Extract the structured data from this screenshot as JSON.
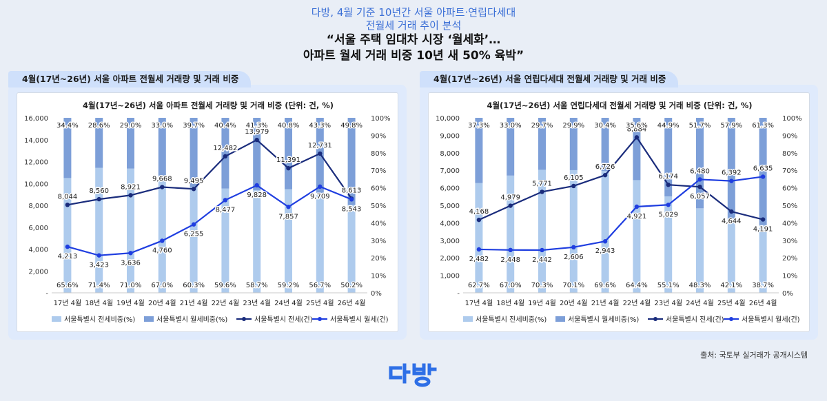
{
  "header": {
    "line1": "다방, 4월 기준 10년간 서울 아파트·연립다세대",
    "line2": "전월세 거래 추이 분석",
    "line3": "“서울 주택 임대차 시장 ‘월세화’…",
    "line4": "아파트 월세 거래 비중 10년 새 50% 육박”"
  },
  "panels": [
    {
      "tab": "4월(17년~26년) 서울 아파트 전월세 거래량 및 거래 비중"
    },
    {
      "tab": "4월(17년~26년) 서울 연립다세대 전월세 거래량 및 거래 비중"
    }
  ],
  "source": "출처: 국토부 실거래가 공개시스템",
  "logo": {
    "name": "dabang-logo",
    "color": "#2e6fe6"
  },
  "colors": {
    "jeonse_bar": "#aecbed",
    "wolse_bar": "#7d9fd8",
    "jeonse_line": "#1a2c7c",
    "wolse_line": "#1f3ee0"
  },
  "chart_data": [
    {
      "type": "bar",
      "title": "4월(17년~26년) 서울 아파트 전월세 거래량 및 거래 비중 (단위: 건, %)",
      "categories": [
        "17년 4월",
        "18년 4월",
        "19년 4월",
        "20년 4월",
        "21년 4월",
        "22년 4월",
        "23년 4월",
        "24년 4월",
        "25년 4월",
        "26년 4월"
      ],
      "y_left": {
        "min": 0,
        "max": 16000,
        "ticks": [
          "-",
          "2,000",
          "4,000",
          "6,000",
          "8,000",
          "10,000",
          "12,000",
          "14,000",
          "16,000"
        ]
      },
      "y_right": {
        "min": 0,
        "max": 100,
        "ticks": [
          "0%",
          "10%",
          "20%",
          "30%",
          "40%",
          "50%",
          "60%",
          "70%",
          "80%",
          "90%",
          "100%"
        ]
      },
      "series": [
        {
          "name": "서울특별시 전세비중(%)",
          "kind": "stacked-bar",
          "values": [
            65.6,
            71.4,
            71.0,
            67.0,
            60.3,
            59.6,
            58.7,
            59.2,
            56.7,
            50.2
          ],
          "labels": [
            "65.6%",
            "71.4%",
            "71.0%",
            "67.0%",
            "60.3%",
            "59.6%",
            "58.7%",
            "59.2%",
            "56.7%",
            "50.2%"
          ]
        },
        {
          "name": "서울특별시 월세비중(%)",
          "kind": "stacked-bar",
          "values": [
            34.4,
            28.6,
            29.0,
            33.0,
            39.7,
            40.4,
            41.3,
            40.8,
            43.3,
            49.8
          ],
          "labels": [
            "34.4%",
            "28.6%",
            "29.0%",
            "33.0%",
            "39.7%",
            "40.4%",
            "41.3%",
            "40.8%",
            "43.3%",
            "49.8%"
          ]
        },
        {
          "name": "서울특별시 전세(건)",
          "kind": "line",
          "values": [
            8044,
            8560,
            8921,
            9668,
            9495,
            12482,
            13979,
            11391,
            12731,
            8613
          ],
          "labels": [
            "8,044",
            "8,560",
            "8,921",
            "9,668",
            "9,495",
            "12,482",
            "13,979",
            "11,391",
            "12,731",
            "8,613"
          ]
        },
        {
          "name": "서울특별시 월세(건)",
          "kind": "line",
          "values": [
            4213,
            3423,
            3636,
            4760,
            6255,
            8477,
            9828,
            7857,
            9709,
            8543
          ],
          "labels": [
            "4,213",
            "3,423",
            "3,636",
            "4,760",
            "6,255",
            "8,477",
            "9,828",
            "7,857",
            "9,709",
            "8,543"
          ]
        }
      ],
      "legend": "bottom"
    },
    {
      "type": "bar",
      "title": "4월(17년~26년) 서울 연립다세대 전월세 거래량 및 거래 비중 (단위: 건, %)",
      "categories": [
        "17년 4월",
        "18년 4월",
        "19년 4월",
        "20년 4월",
        "21년 4월",
        "22년 4월",
        "23년 4월",
        "24년 4월",
        "25년 4월",
        "26년 4월"
      ],
      "y_left": {
        "min": 0,
        "max": 10000,
        "ticks": [
          "-",
          "1,000",
          "2,000",
          "3,000",
          "4,000",
          "5,000",
          "6,000",
          "7,000",
          "8,000",
          "9,000",
          "10,000"
        ]
      },
      "y_right": {
        "min": 0,
        "max": 100,
        "ticks": [
          "0%",
          "10%",
          "20%",
          "30%",
          "40%",
          "50%",
          "60%",
          "70%",
          "80%",
          "90%",
          "100%"
        ]
      },
      "series": [
        {
          "name": "서울특별시 전세비중(%)",
          "kind": "stacked-bar",
          "values": [
            62.7,
            67.0,
            70.3,
            70.1,
            69.6,
            64.4,
            55.1,
            48.3,
            42.1,
            38.7
          ],
          "labels": [
            "62.7%",
            "67.0%",
            "70.3%",
            "70.1%",
            "69.6%",
            "64.4%",
            "55.1%",
            "48.3%",
            "42.1%",
            "38.7%"
          ]
        },
        {
          "name": "서울특별시 월세비중(%)",
          "kind": "stacked-bar",
          "values": [
            37.3,
            33.0,
            29.7,
            29.9,
            30.4,
            35.6,
            44.9,
            51.7,
            57.9,
            61.3
          ],
          "labels": [
            "37.3%",
            "33.0%",
            "29.7%",
            "29.9%",
            "30.4%",
            "35.6%",
            "44.9%",
            "51.7%",
            "57.9%",
            "61.3%"
          ]
        },
        {
          "name": "서울특별시 전세(건)",
          "kind": "line",
          "values": [
            4168,
            4979,
            5771,
            6105,
            6726,
            8884,
            6174,
            6057,
            4644,
            4191
          ],
          "labels": [
            "4,168",
            "4,979",
            "5,771",
            "6,105",
            "6,726",
            "8,884",
            "6,174",
            "6,057",
            "4,644",
            "4,191"
          ]
        },
        {
          "name": "서울특별시 월세(건)",
          "kind": "line",
          "values": [
            2482,
            2448,
            2442,
            2606,
            2943,
            4921,
            5029,
            6480,
            6392,
            6635
          ],
          "labels": [
            "2,482",
            "2,448",
            "2,442",
            "2,606",
            "2,943",
            "4,921",
            "5,029",
            "6,480",
            "6,392",
            "6,635"
          ]
        }
      ],
      "legend": "bottom"
    }
  ]
}
